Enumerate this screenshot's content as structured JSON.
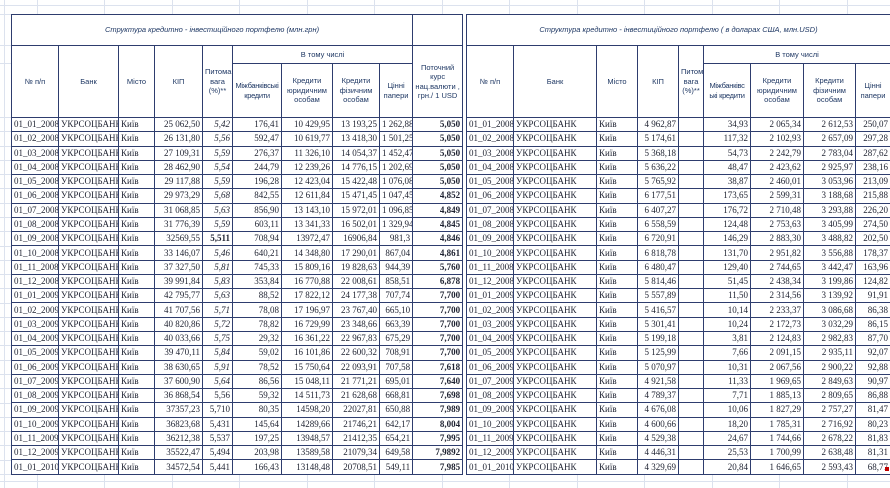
{
  "colors": {
    "table_border": "#2e3d6e",
    "gridline": "#dce2ee",
    "header_text": "#1f3864",
    "data_text": "#1d2130",
    "muted_text": "#9099a8",
    "marker_red": "#c00000"
  },
  "left_table": {
    "title": "Структура кредитно - інвестиційного портфелю (млн.грн)",
    "group_header": "В тому числі",
    "bank": "УКРСОЦБАНК",
    "city": "Київ",
    "columns": {
      "num": "№ п/п",
      "bank": "Банк",
      "city": "Місто",
      "kip": "КІП",
      "weight": "Питома вага (%)**",
      "interbank": "Міжбанківські кредити",
      "legal": "Кредити юридичним особам",
      "individuals": "Кредити фізичним особам",
      "securities": "Цінні папери",
      "rate": "Поточний курс нац.валюти , грн./ 1 USD"
    },
    "rows": [
      [
        "01_01_2008",
        "25 062,50",
        "5,42",
        "176,41",
        "10 429,95",
        "13 193,25",
        "1 262,88",
        "5,050",
        "it"
      ],
      [
        "01_02_2008",
        "26 131,80",
        "5,56",
        "592,47",
        "10 619,77",
        "13 418,30",
        "1 501,25",
        "5,050",
        "it"
      ],
      [
        "01_03_2008",
        "27 109,31",
        "5,59",
        "276,37",
        "11 326,10",
        "14 054,37",
        "1 452,47",
        "5,050",
        "it"
      ],
      [
        "01_04_2008",
        "28 462,90",
        "5,54",
        "244,79",
        "12 239,26",
        "14 776,15",
        "1 202,69",
        "5,050",
        "it"
      ],
      [
        "01_05_2008",
        "29 117,88",
        "5,59",
        "196,28",
        "12 423,04",
        "15 422,48",
        "1 076,08",
        "5,050",
        "it"
      ],
      [
        "01_06_2008",
        "29 973,29",
        "5,68",
        "842,55",
        "12 611,84",
        "15 471,45",
        "1 047,45",
        "4,852",
        "it"
      ],
      [
        "01_07_2008",
        "31 068,85",
        "5,63",
        "856,90",
        "13 143,10",
        "15 972,01",
        "1 096,85",
        "4,849",
        "it"
      ],
      [
        "01_08_2008",
        "31 776,39",
        "5,59",
        "603,11",
        "13 341,33",
        "16 502,01",
        "1 329,94",
        "4,845",
        "it"
      ],
      [
        "01_09_2008",
        "32569,55",
        "5,511",
        "708,94",
        "13972,47",
        "16906,84",
        "981,3",
        "4,846",
        "b"
      ],
      [
        "01_10_2008",
        "33 146,07",
        "5,46",
        "640,21",
        "14 348,80",
        "17 290,01",
        "867,04",
        "4,861",
        "it"
      ],
      [
        "01_11_2008",
        "37 327,50",
        "5,81",
        "745,33",
        "15 809,16",
        "19 828,63",
        "944,39",
        "5,760",
        "it"
      ],
      [
        "01_12_2008",
        "39 991,84",
        "5,83",
        "353,84",
        "16 770,88",
        "22 008,61",
        "858,51",
        "6,878",
        "it"
      ],
      [
        "01_01_2009",
        "42 795,77",
        "5,63",
        "88,52",
        "17 822,12",
        "24 177,38",
        "707,74",
        "7,700",
        "it"
      ],
      [
        "01_02_2009",
        "41 707,56",
        "5,71",
        "78,08",
        "17 196,97",
        "23 767,40",
        "665,10",
        "7,700",
        "it"
      ],
      [
        "01_03_2009",
        "40 820,86",
        "5,72",
        "78,82",
        "16 729,99",
        "23 348,66",
        "663,39",
        "7,700",
        "it"
      ],
      [
        "01_04_2009",
        "40 033,66",
        "5,75",
        "29,32",
        "16 361,22",
        "22 967,83",
        "675,29",
        "7,700",
        "it"
      ],
      [
        "01_05_2009",
        "39 470,11",
        "5,84",
        "59,02",
        "16 101,86",
        "22 600,32",
        "708,91",
        "7,700",
        "it"
      ],
      [
        "01_06_2009",
        "38 630,65",
        "5,91",
        "78,52",
        "15 750,64",
        "22 093,91",
        "707,58",
        "7,618",
        "it"
      ],
      [
        "01_07_2009",
        "37 600,90",
        "5,64",
        "86,56",
        "15 048,11",
        "21 771,21",
        "695,01",
        "7,640",
        "it"
      ],
      [
        "01_08_2009",
        "36 868,54",
        "5,56",
        "59,32",
        "14 511,73",
        "21 628,68",
        "668,81",
        "7,698",
        "p"
      ],
      [
        "01_09_2009",
        "37357,23",
        "5,710",
        "80,35",
        "14598,20",
        "22027,81",
        "650,88",
        "7,989",
        "g"
      ],
      [
        "01_10_2009",
        "36823,68",
        "5,431",
        "145,64",
        "14289,66",
        "21746,21",
        "642,17",
        "8,004",
        "g"
      ],
      [
        "01_11_2009",
        "36212,38",
        "5,537",
        "197,25",
        "13948,57",
        "21412,35",
        "654,21",
        "7,995",
        "g"
      ],
      [
        "01_12_2009",
        "35522,47",
        "5,494",
        "203,98",
        "13589,58",
        "21079,34",
        "649,58",
        "7,9892",
        "g"
      ],
      [
        "01_01_2010",
        "34572,54",
        "5,441",
        "166,43",
        "13148,48",
        "20708,51",
        "549,11",
        "7,985",
        "g"
      ]
    ]
  },
  "right_table": {
    "title": "Структура кредитно - інвестиційного портфелю ( в доларах США, млн.USD)",
    "group_header": "В тому числі",
    "bank": "УКРСОЦБАНК",
    "city": "Київ",
    "columns": {
      "num": "№ п/п",
      "bank": "Банк",
      "city": "Місто",
      "kip": "КІП",
      "weight": "Питома вага (%)**",
      "interbank": "Міжбанківс ькі кредити",
      "legal": "Кредити юридичним особам",
      "individuals": "Кредити фізичним особам",
      "securities": "Цінні папери"
    },
    "rows": [
      [
        "01_01_2008",
        "4 962,87",
        "34,93",
        "2 065,34",
        "2 612,53",
        "250,07"
      ],
      [
        "01_02_2008",
        "5 174,61",
        "117,32",
        "2 102,93",
        "2 657,09",
        "297,28"
      ],
      [
        "01_03_2008",
        "5 368,18",
        "54,73",
        "2 242,79",
        "2 783,04",
        "287,62"
      ],
      [
        "01_04_2008",
        "5 636,22",
        "48,47",
        "2 423,62",
        "2 925,97",
        "238,16"
      ],
      [
        "01_05_2008",
        "5 765,92",
        "38,87",
        "2 460,01",
        "3 053,96",
        "213,09"
      ],
      [
        "01_06_2008",
        "6 177,51",
        "173,65",
        "2 599,31",
        "3 188,68",
        "215,88"
      ],
      [
        "01_07_2008",
        "6 407,27",
        "176,72",
        "2 710,48",
        "3 293,88",
        "226,20"
      ],
      [
        "01_08_2008",
        "6 558,59",
        "124,48",
        "2 753,63",
        "3 405,99",
        "274,50"
      ],
      [
        "01_09_2008",
        "6 720,91",
        "146,29",
        "2 883,30",
        "3 488,82",
        "202,50"
      ],
      [
        "01_10_2008",
        "6 818,78",
        "131,70",
        "2 951,82",
        "3 556,88",
        "178,37"
      ],
      [
        "01_11_2008",
        "6 480,47",
        "129,40",
        "2 744,65",
        "3 442,47",
        "163,96"
      ],
      [
        "01_12_2008",
        "5 814,46",
        "51,45",
        "2 438,34",
        "3 199,86",
        "124,82"
      ],
      [
        "01_01_2009",
        "5 557,89",
        "11,50",
        "2 314,56",
        "3 139,92",
        "91,91"
      ],
      [
        "01_02_2009",
        "5 416,57",
        "10,14",
        "2 233,37",
        "3 086,68",
        "86,38"
      ],
      [
        "01_03_2009",
        "5 301,41",
        "10,24",
        "2 172,73",
        "3 032,29",
        "86,15"
      ],
      [
        "01_04_2009",
        "5 199,18",
        "3,81",
        "2 124,83",
        "2 982,83",
        "87,70"
      ],
      [
        "01_05_2009",
        "5 125,99",
        "7,66",
        "2 091,15",
        "2 935,11",
        "92,07"
      ],
      [
        "01_06_2009",
        "5 070,97",
        "10,31",
        "2 067,56",
        "2 900,22",
        "92,88"
      ],
      [
        "01_07_2009",
        "4 921,58",
        "11,33",
        "1 969,65",
        "2 849,63",
        "90,97"
      ],
      [
        "01_08_2009",
        "4 789,37",
        "7,71",
        "1 885,13",
        "2 809,65",
        "86,88"
      ],
      [
        "01_09_2009",
        "4 676,08",
        "10,06",
        "1 827,29",
        "2 757,27",
        "81,47"
      ],
      [
        "01_10_2009",
        "4 600,66",
        "18,20",
        "1 785,31",
        "2 716,92",
        "80,23"
      ],
      [
        "01_11_2009",
        "4 529,38",
        "24,67",
        "1 744,66",
        "2 678,22",
        "81,83"
      ],
      [
        "01_12_2009",
        "4 446,31",
        "25,53",
        "1 700,99",
        "2 638,48",
        "81,31"
      ],
      [
        "01_01_2010",
        "4 329,69",
        "20,84",
        "1 646,65",
        "2 593,43",
        "68,77"
      ]
    ]
  }
}
